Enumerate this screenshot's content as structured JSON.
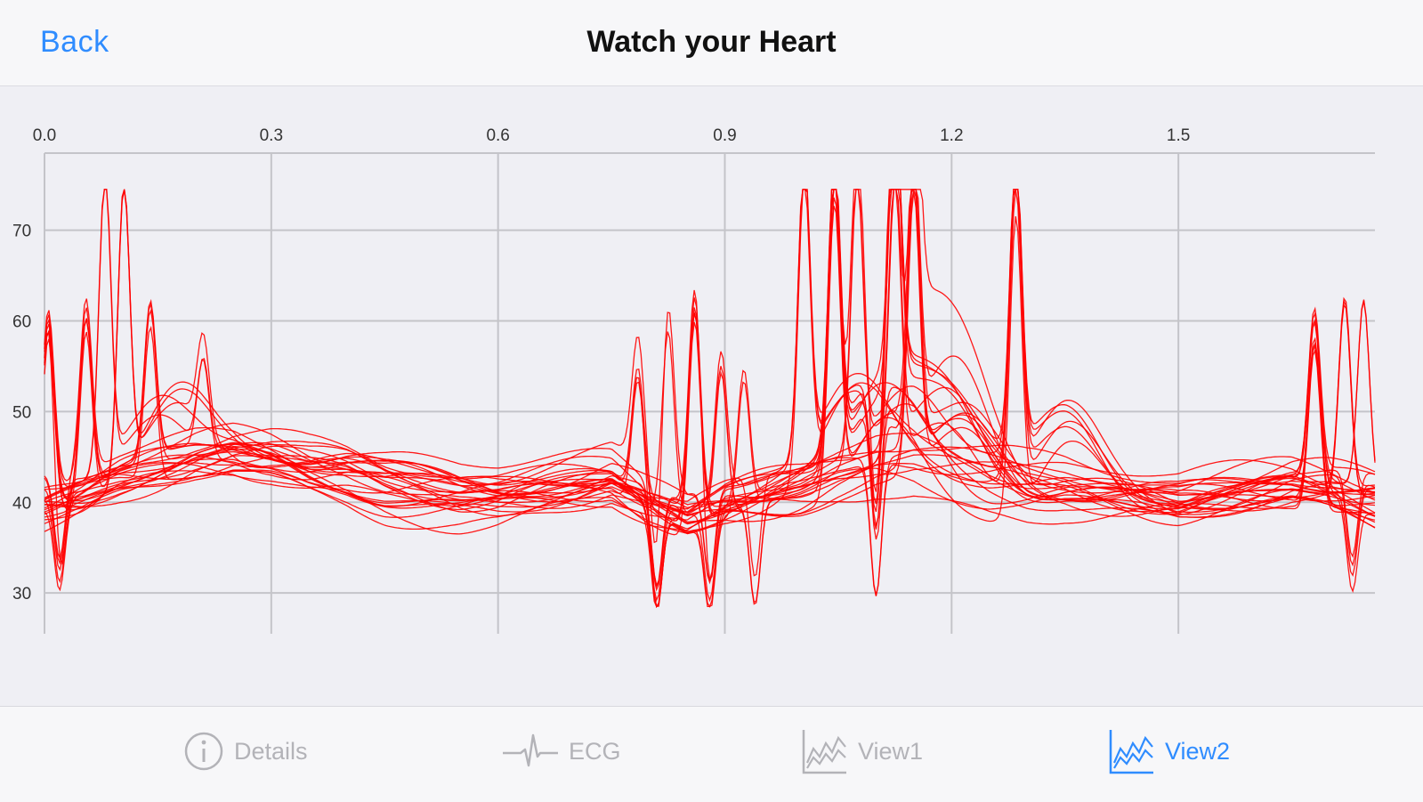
{
  "header": {
    "back_label": "Back",
    "title": "Watch your Heart"
  },
  "tabs": [
    {
      "label": "Details",
      "icon": "info-icon",
      "active": false
    },
    {
      "label": "ECG",
      "icon": "ecg-icon",
      "active": false
    },
    {
      "label": "View1",
      "icon": "area-chart-icon",
      "active": false
    },
    {
      "label": "View2",
      "icon": "area-chart-icon",
      "active": true
    }
  ],
  "colors": {
    "accent": "#2f8cff",
    "trace": "#ff0000",
    "grid": "#c4c4c9",
    "inactive": "#b3b3b8"
  },
  "chart_data": {
    "type": "line",
    "title": "",
    "xlabel": "",
    "ylabel": "",
    "x_ticks": [
      "0.0",
      "0.3",
      "0.6",
      "0.9",
      "1.2",
      "1.5"
    ],
    "y_ticks": [
      "30",
      "40",
      "50",
      "60",
      "70"
    ],
    "xlim": [
      0.0,
      1.76
    ],
    "ylim": [
      25.5,
      78.5
    ],
    "grid": true,
    "x_axis_position": "top",
    "series_color": "#ff0000",
    "overlaid_beats_approx": 30,
    "baseline": {
      "x": [
        0.0,
        0.05,
        0.1,
        0.15,
        0.2,
        0.25,
        0.3,
        0.35,
        0.4,
        0.45,
        0.5,
        0.55,
        0.6,
        0.65,
        0.7,
        0.75,
        0.8,
        0.85,
        0.9,
        0.95,
        1.0,
        1.05,
        1.1,
        1.15,
        1.2,
        1.25,
        1.3,
        1.35,
        1.4,
        1.45,
        1.5,
        1.55,
        1.6,
        1.65,
        1.7,
        1.76
      ],
      "y": [
        40,
        41,
        42.5,
        43.5,
        44.5,
        45,
        44.5,
        43.5,
        43,
        42,
        41.5,
        41,
        41,
        41.5,
        42,
        42.5,
        40,
        38,
        39.5,
        40.5,
        41.5,
        43,
        44,
        44,
        43,
        42,
        41.5,
        41.5,
        41,
        40.5,
        40,
        40.5,
        41,
        41.5,
        41,
        40
      ]
    },
    "peaks": [
      {
        "x": 0.005,
        "y": 61
      },
      {
        "x": 0.055,
        "y": 61
      },
      {
        "x": 0.08,
        "y": 74
      },
      {
        "x": 0.105,
        "y": 74
      },
      {
        "x": 0.14,
        "y": 61
      },
      {
        "x": 0.21,
        "y": 55
      },
      {
        "x": 0.785,
        "y": 55
      },
      {
        "x": 0.825,
        "y": 60
      },
      {
        "x": 0.86,
        "y": 63
      },
      {
        "x": 0.895,
        "y": 56
      },
      {
        "x": 0.925,
        "y": 55
      },
      {
        "x": 1.005,
        "y": 74
      },
      {
        "x": 1.045,
        "y": 74
      },
      {
        "x": 1.075,
        "y": 74
      },
      {
        "x": 1.125,
        "y": 74
      },
      {
        "x": 1.15,
        "y": 74
      },
      {
        "x": 1.285,
        "y": 74
      },
      {
        "x": 1.68,
        "y": 60
      },
      {
        "x": 1.72,
        "y": 63
      },
      {
        "x": 1.745,
        "y": 62
      }
    ],
    "troughs": [
      {
        "x": 0.02,
        "y": 31
      },
      {
        "x": 0.81,
        "y": 29
      },
      {
        "x": 0.88,
        "y": 29
      },
      {
        "x": 0.94,
        "y": 29
      },
      {
        "x": 1.1,
        "y": 29
      },
      {
        "x": 1.73,
        "y": 31
      }
    ]
  }
}
